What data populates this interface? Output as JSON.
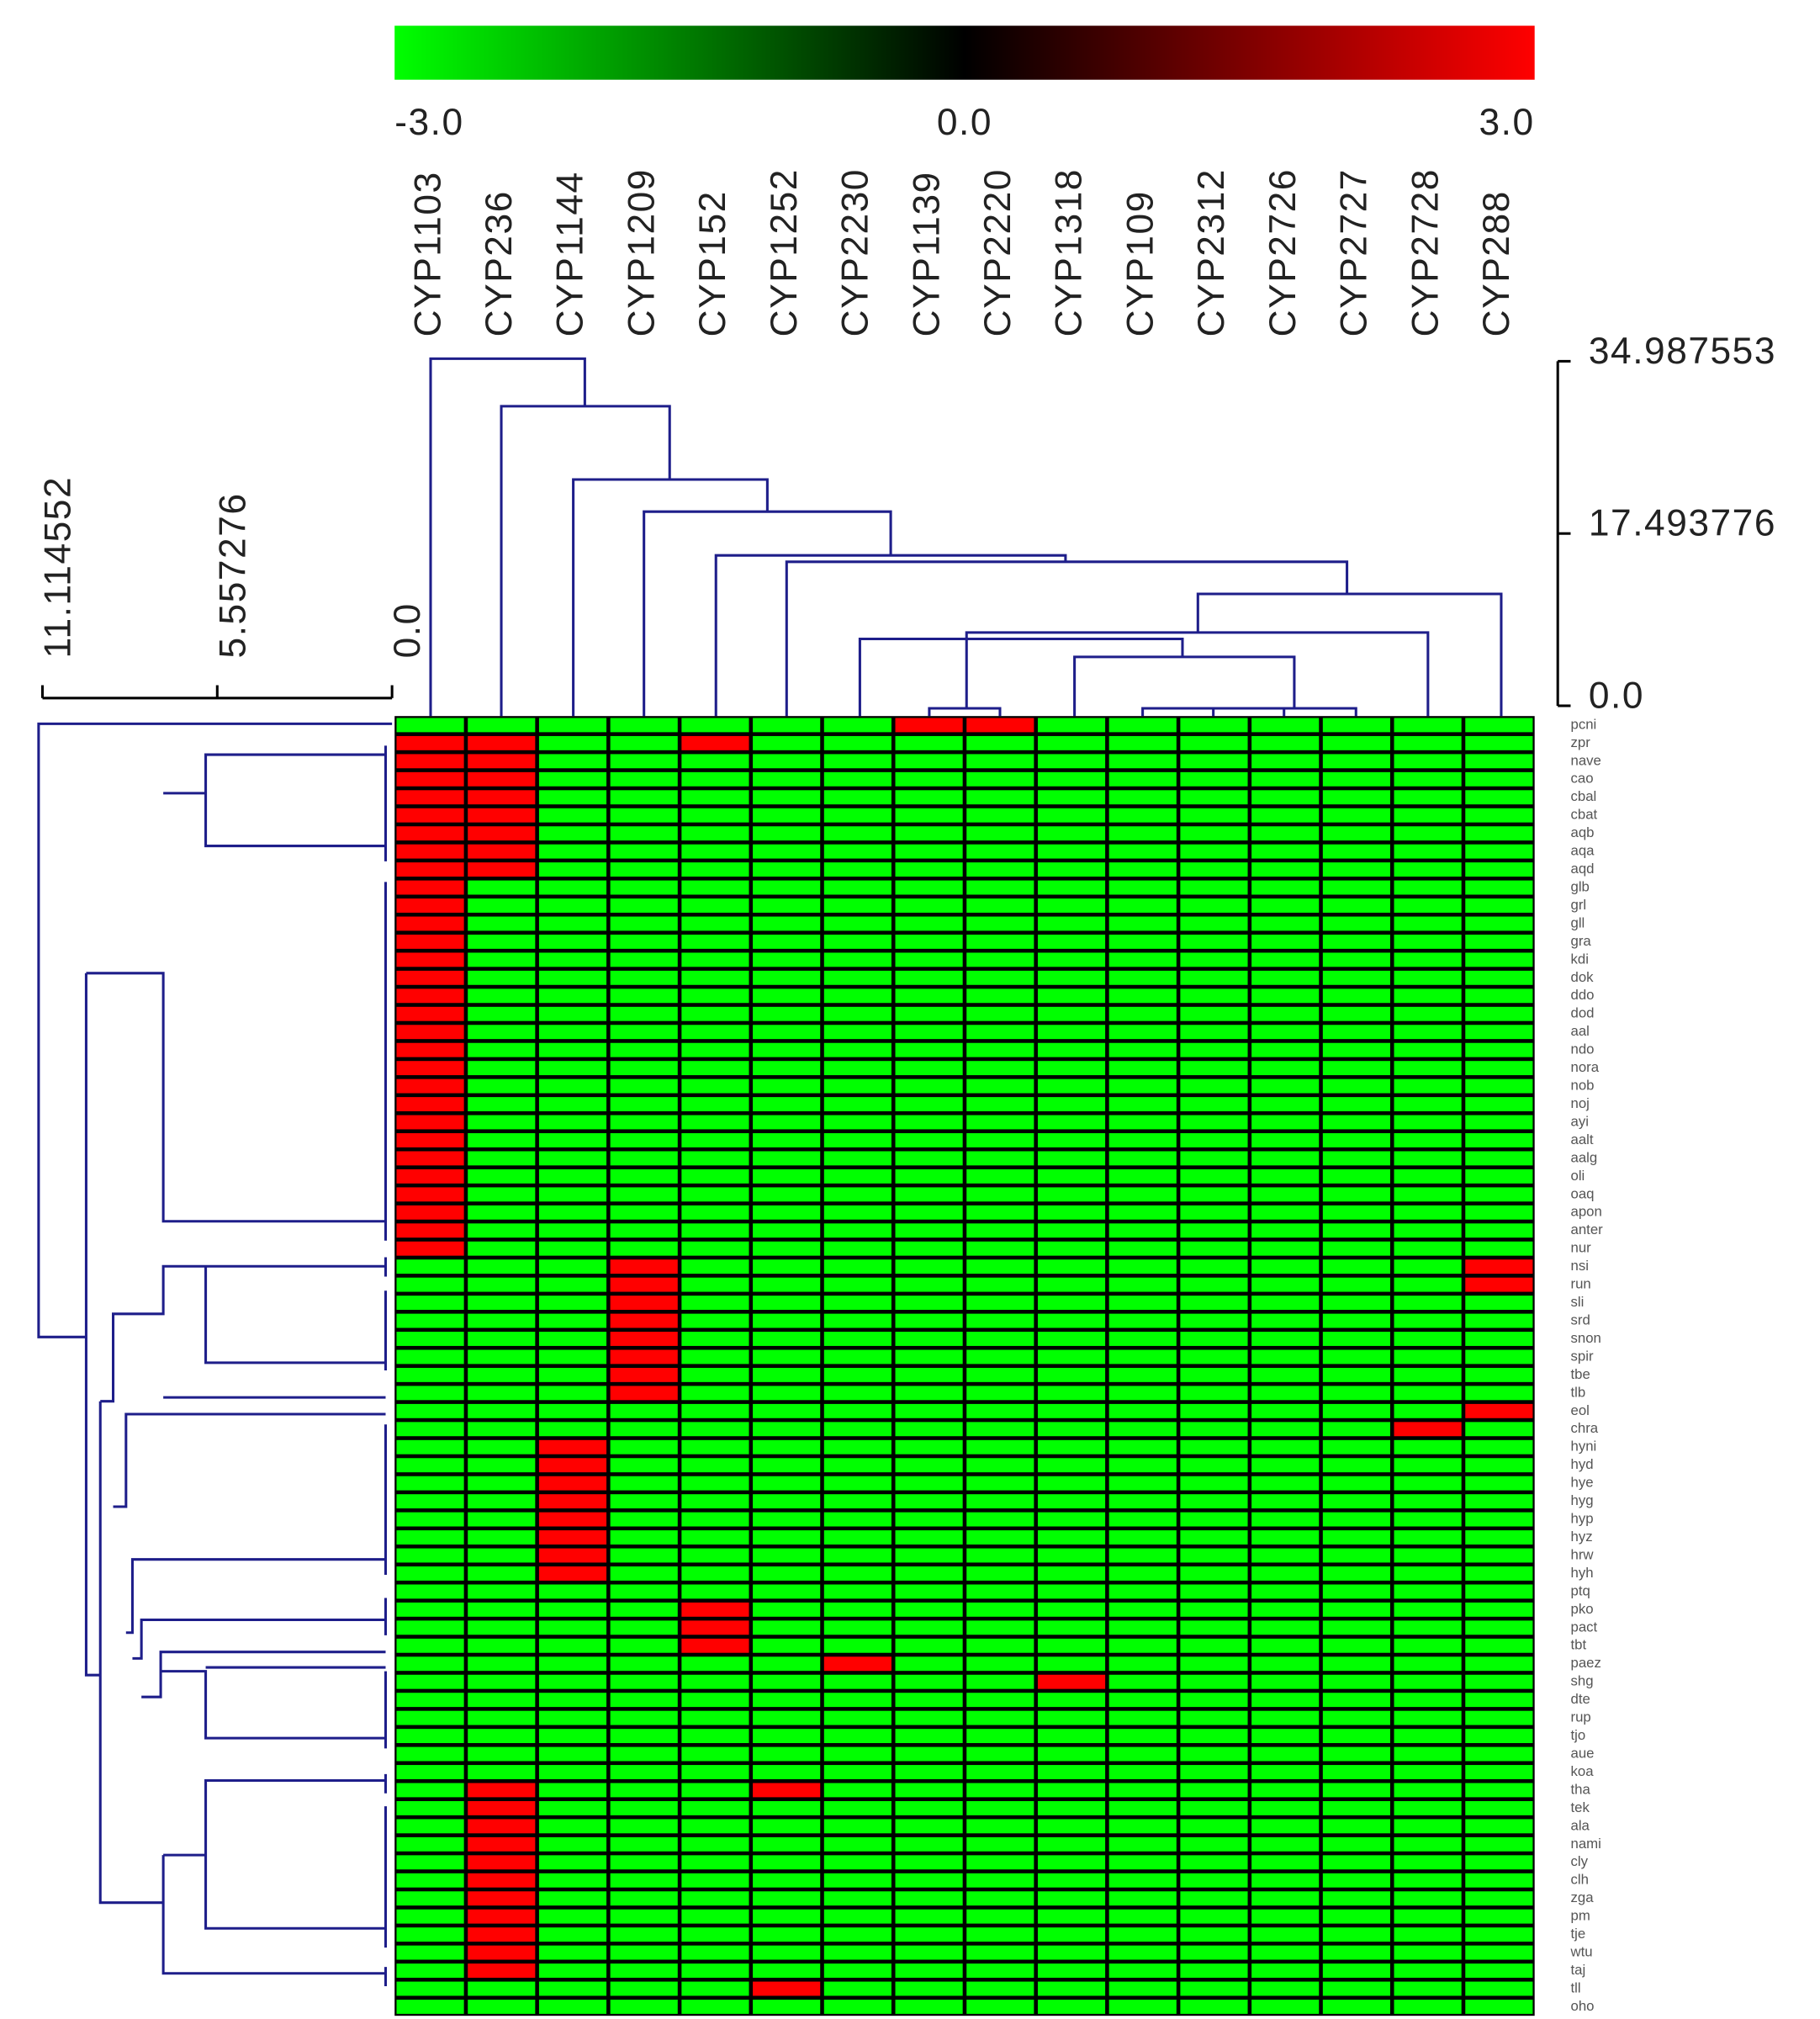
{
  "chart_data": {
    "type": "heatmap",
    "colormap": [
      "#00ff00",
      "#000000",
      "#ff0000"
    ],
    "colorbar": {
      "lim": [
        -3,
        3
      ],
      "ticks": [
        {
          "value": -3,
          "label": "-3.0"
        },
        {
          "value": 0,
          "label": "0.0"
        },
        {
          "value": 3,
          "label": "3.0"
        }
      ]
    },
    "column_dendrogram_axis": {
      "ylim": [
        0,
        34.987553
      ],
      "yticks": [
        34.987553,
        17.493776,
        {
          "value": 0,
          "label": "0.0"
        }
      ]
    },
    "row_dendrogram_axis": {
      "xlim": [
        0,
        11.114552
      ],
      "xticks": [
        11.114552,
        5.557276,
        {
          "value": 0,
          "label": "0.0"
        }
      ]
    },
    "columns": [
      "CYP1103",
      "CYP236",
      "CYP1144",
      "CYP1209",
      "CYP152",
      "CYP1252",
      "CYP2230",
      "CYP1139",
      "CYP2220",
      "CYP1318",
      "CYP109",
      "CYP2312",
      "CYP2726",
      "CYP2727",
      "CYP2728",
      "CYP288"
    ],
    "rows": [
      "pcni",
      "zpr",
      "nave",
      "cao",
      "cbal",
      "cbat",
      "aqb",
      "aqa",
      "aqd",
      "glb",
      "grl",
      "gll",
      "gra",
      "kdi",
      "dok",
      "ddo",
      "dod",
      "aal",
      "ndo",
      "nora",
      "nob",
      "noj",
      "ayi",
      "aalt",
      "aalg",
      "oli",
      "oaq",
      "apon",
      "anter",
      "nur",
      "nsi",
      "run",
      "sli",
      "srd",
      "snon",
      "spir",
      "tbe",
      "tlb",
      "eol",
      "chra",
      "hyni",
      "hyd",
      "hye",
      "hyg",
      "hyp",
      "hyz",
      "hrw",
      "hyh",
      "ptq",
      "pko",
      "pact",
      "tbt",
      "paez",
      "shg",
      "dte",
      "rup",
      "tjo",
      "aue",
      "koa",
      "tha",
      "tek",
      "ala",
      "nami",
      "cly",
      "clh",
      "zga",
      "pm",
      "tje",
      "wtu",
      "taj",
      "tll",
      "oho"
    ],
    "values": [
      [
        -3,
        -3,
        -3,
        -3,
        -3,
        -3,
        -3,
        3,
        3,
        -3,
        -3,
        -3,
        -3,
        -3,
        -3,
        -3
      ],
      [
        3,
        3,
        -3,
        -3,
        3,
        -3,
        -3,
        -3,
        -3,
        -3,
        -3,
        -3,
        -3,
        -3,
        -3,
        -3
      ],
      [
        3,
        3,
        -3,
        -3,
        -3,
        -3,
        -3,
        -3,
        -3,
        -3,
        -3,
        -3,
        -3,
        -3,
        -3,
        -3
      ],
      [
        3,
        3,
        -3,
        -3,
        -3,
        -3,
        -3,
        -3,
        -3,
        -3,
        -3,
        -3,
        -3,
        -3,
        -3,
        -3
      ],
      [
        3,
        3,
        -3,
        -3,
        -3,
        -3,
        -3,
        -3,
        -3,
        -3,
        -3,
        -3,
        -3,
        -3,
        -3,
        -3
      ],
      [
        3,
        3,
        -3,
        -3,
        -3,
        -3,
        -3,
        -3,
        -3,
        -3,
        -3,
        -3,
        -3,
        -3,
        -3,
        -3
      ],
      [
        3,
        3,
        -3,
        -3,
        -3,
        -3,
        -3,
        -3,
        -3,
        -3,
        -3,
        -3,
        -3,
        -3,
        -3,
        -3
      ],
      [
        3,
        3,
        -3,
        -3,
        -3,
        -3,
        -3,
        -3,
        -3,
        -3,
        -3,
        -3,
        -3,
        -3,
        -3,
        -3
      ],
      [
        3,
        3,
        -3,
        -3,
        -3,
        -3,
        -3,
        -3,
        -3,
        -3,
        -3,
        -3,
        -3,
        -3,
        -3,
        -3
      ],
      [
        3,
        -3,
        -3,
        -3,
        -3,
        -3,
        -3,
        -3,
        -3,
        -3,
        -3,
        -3,
        -3,
        -3,
        -3,
        -3
      ],
      [
        3,
        -3,
        -3,
        -3,
        -3,
        -3,
        -3,
        -3,
        -3,
        -3,
        -3,
        -3,
        -3,
        -3,
        -3,
        -3
      ],
      [
        3,
        -3,
        -3,
        -3,
        -3,
        -3,
        -3,
        -3,
        -3,
        -3,
        -3,
        -3,
        -3,
        -3,
        -3,
        -3
      ],
      [
        3,
        -3,
        -3,
        -3,
        -3,
        -3,
        -3,
        -3,
        -3,
        -3,
        -3,
        -3,
        -3,
        -3,
        -3,
        -3
      ],
      [
        3,
        -3,
        -3,
        -3,
        -3,
        -3,
        -3,
        -3,
        -3,
        -3,
        -3,
        -3,
        -3,
        -3,
        -3,
        -3
      ],
      [
        3,
        -3,
        -3,
        -3,
        -3,
        -3,
        -3,
        -3,
        -3,
        -3,
        -3,
        -3,
        -3,
        -3,
        -3,
        -3
      ],
      [
        3,
        -3,
        -3,
        -3,
        -3,
        -3,
        -3,
        -3,
        -3,
        -3,
        -3,
        -3,
        -3,
        -3,
        -3,
        -3
      ],
      [
        3,
        -3,
        -3,
        -3,
        -3,
        -3,
        -3,
        -3,
        -3,
        -3,
        -3,
        -3,
        -3,
        -3,
        -3,
        -3
      ],
      [
        3,
        -3,
        -3,
        -3,
        -3,
        -3,
        -3,
        -3,
        -3,
        -3,
        -3,
        -3,
        -3,
        -3,
        -3,
        -3
      ],
      [
        3,
        -3,
        -3,
        -3,
        -3,
        -3,
        -3,
        -3,
        -3,
        -3,
        -3,
        -3,
        -3,
        -3,
        -3,
        -3
      ],
      [
        3,
        -3,
        -3,
        -3,
        -3,
        -3,
        -3,
        -3,
        -3,
        -3,
        -3,
        -3,
        -3,
        -3,
        -3,
        -3
      ],
      [
        3,
        -3,
        -3,
        -3,
        -3,
        -3,
        -3,
        -3,
        -3,
        -3,
        -3,
        -3,
        -3,
        -3,
        -3,
        -3
      ],
      [
        3,
        -3,
        -3,
        -3,
        -3,
        -3,
        -3,
        -3,
        -3,
        -3,
        -3,
        -3,
        -3,
        -3,
        -3,
        -3
      ],
      [
        3,
        -3,
        -3,
        -3,
        -3,
        -3,
        -3,
        -3,
        -3,
        -3,
        -3,
        -3,
        -3,
        -3,
        -3,
        -3
      ],
      [
        3,
        -3,
        -3,
        -3,
        -3,
        -3,
        -3,
        -3,
        -3,
        -3,
        -3,
        -3,
        -3,
        -3,
        -3,
        -3
      ],
      [
        3,
        -3,
        -3,
        -3,
        -3,
        -3,
        -3,
        -3,
        -3,
        -3,
        -3,
        -3,
        -3,
        -3,
        -3,
        -3
      ],
      [
        3,
        -3,
        -3,
        -3,
        -3,
        -3,
        -3,
        -3,
        -3,
        -3,
        -3,
        -3,
        -3,
        -3,
        -3,
        -3
      ],
      [
        3,
        -3,
        -3,
        -3,
        -3,
        -3,
        -3,
        -3,
        -3,
        -3,
        -3,
        -3,
        -3,
        -3,
        -3,
        -3
      ],
      [
        3,
        -3,
        -3,
        -3,
        -3,
        -3,
        -3,
        -3,
        -3,
        -3,
        -3,
        -3,
        -3,
        -3,
        -3,
        -3
      ],
      [
        3,
        -3,
        -3,
        -3,
        -3,
        -3,
        -3,
        -3,
        -3,
        -3,
        -3,
        -3,
        -3,
        -3,
        -3,
        -3
      ],
      [
        3,
        -3,
        -3,
        -3,
        -3,
        -3,
        -3,
        -3,
        -3,
        -3,
        -3,
        -3,
        -3,
        -3,
        -3,
        -3
      ],
      [
        -3,
        -3,
        -3,
        3,
        -3,
        -3,
        -3,
        -3,
        -3,
        -3,
        -3,
        -3,
        -3,
        -3,
        -3,
        3
      ],
      [
        -3,
        -3,
        -3,
        3,
        -3,
        -3,
        -3,
        -3,
        -3,
        -3,
        -3,
        -3,
        -3,
        -3,
        -3,
        3
      ],
      [
        -3,
        -3,
        -3,
        3,
        -3,
        -3,
        -3,
        -3,
        -3,
        -3,
        -3,
        -3,
        -3,
        -3,
        -3,
        -3
      ],
      [
        -3,
        -3,
        -3,
        3,
        -3,
        -3,
        -3,
        -3,
        -3,
        -3,
        -3,
        -3,
        -3,
        -3,
        -3,
        -3
      ],
      [
        -3,
        -3,
        -3,
        3,
        -3,
        -3,
        -3,
        -3,
        -3,
        -3,
        -3,
        -3,
        -3,
        -3,
        -3,
        -3
      ],
      [
        -3,
        -3,
        -3,
        3,
        -3,
        -3,
        -3,
        -3,
        -3,
        -3,
        -3,
        -3,
        -3,
        -3,
        -3,
        -3
      ],
      [
        -3,
        -3,
        -3,
        3,
        -3,
        -3,
        -3,
        -3,
        -3,
        -3,
        -3,
        -3,
        -3,
        -3,
        -3,
        -3
      ],
      [
        -3,
        -3,
        -3,
        3,
        -3,
        -3,
        -3,
        -3,
        -3,
        -3,
        -3,
        -3,
        -3,
        -3,
        -3,
        -3
      ],
      [
        -3,
        -3,
        -3,
        -3,
        -3,
        -3,
        -3,
        -3,
        -3,
        -3,
        -3,
        -3,
        -3,
        -3,
        -3,
        3
      ],
      [
        -3,
        -3,
        -3,
        -3,
        -3,
        -3,
        -3,
        -3,
        -3,
        -3,
        -3,
        -3,
        -3,
        -3,
        3,
        -3
      ],
      [
        -3,
        -3,
        3,
        -3,
        -3,
        -3,
        -3,
        -3,
        -3,
        -3,
        -3,
        -3,
        -3,
        -3,
        -3,
        -3
      ],
      [
        -3,
        -3,
        3,
        -3,
        -3,
        -3,
        -3,
        -3,
        -3,
        -3,
        -3,
        -3,
        -3,
        -3,
        -3,
        -3
      ],
      [
        -3,
        -3,
        3,
        -3,
        -3,
        -3,
        -3,
        -3,
        -3,
        -3,
        -3,
        -3,
        -3,
        -3,
        -3,
        -3
      ],
      [
        -3,
        -3,
        3,
        -3,
        -3,
        -3,
        -3,
        -3,
        -3,
        -3,
        -3,
        -3,
        -3,
        -3,
        -3,
        -3
      ],
      [
        -3,
        -3,
        3,
        -3,
        -3,
        -3,
        -3,
        -3,
        -3,
        -3,
        -3,
        -3,
        -3,
        -3,
        -3,
        -3
      ],
      [
        -3,
        -3,
        3,
        -3,
        -3,
        -3,
        -3,
        -3,
        -3,
        -3,
        -3,
        -3,
        -3,
        -3,
        -3,
        -3
      ],
      [
        -3,
        -3,
        3,
        -3,
        -3,
        -3,
        -3,
        -3,
        -3,
        -3,
        -3,
        -3,
        -3,
        -3,
        -3,
        -3
      ],
      [
        -3,
        -3,
        3,
        -3,
        -3,
        -3,
        -3,
        -3,
        -3,
        -3,
        -3,
        -3,
        -3,
        -3,
        -3,
        -3
      ],
      [
        -3,
        -3,
        -3,
        -3,
        -3,
        -3,
        -3,
        -3,
        -3,
        -3,
        -3,
        -3,
        -3,
        -3,
        -3,
        -3
      ],
      [
        -3,
        -3,
        -3,
        -3,
        3,
        -3,
        -3,
        -3,
        -3,
        -3,
        -3,
        -3,
        -3,
        -3,
        -3,
        -3
      ],
      [
        -3,
        -3,
        -3,
        -3,
        3,
        -3,
        -3,
        -3,
        -3,
        -3,
        -3,
        -3,
        -3,
        -3,
        -3,
        -3
      ],
      [
        -3,
        -3,
        -3,
        -3,
        3,
        -3,
        -3,
        -3,
        -3,
        -3,
        -3,
        -3,
        -3,
        -3,
        -3,
        -3
      ],
      [
        -3,
        -3,
        -3,
        -3,
        -3,
        -3,
        3,
        -3,
        -3,
        -3,
        -3,
        -3,
        -3,
        -3,
        -3,
        -3
      ],
      [
        -3,
        -3,
        -3,
        -3,
        -3,
        -3,
        -3,
        -3,
        -3,
        3,
        -3,
        -3,
        -3,
        -3,
        -3,
        -3
      ],
      [
        -3,
        -3,
        -3,
        -3,
        -3,
        -3,
        -3,
        -3,
        -3,
        -3,
        -3,
        -3,
        -3,
        -3,
        -3,
        -3
      ],
      [
        -3,
        -3,
        -3,
        -3,
        -3,
        -3,
        -3,
        -3,
        -3,
        -3,
        -3,
        -3,
        -3,
        -3,
        -3,
        -3
      ],
      [
        -3,
        -3,
        -3,
        -3,
        -3,
        -3,
        -3,
        -3,
        -3,
        -3,
        -3,
        -3,
        -3,
        -3,
        -3,
        -3
      ],
      [
        -3,
        -3,
        -3,
        -3,
        -3,
        -3,
        -3,
        -3,
        -3,
        -3,
        -3,
        -3,
        -3,
        -3,
        -3,
        -3
      ],
      [
        -3,
        -3,
        -3,
        -3,
        -3,
        -3,
        -3,
        -3,
        -3,
        -3,
        -3,
        -3,
        -3,
        -3,
        -3,
        -3
      ],
      [
        -3,
        3,
        -3,
        -3,
        -3,
        3,
        -3,
        -3,
        -3,
        -3,
        -3,
        -3,
        -3,
        -3,
        -3,
        -3
      ],
      [
        -3,
        3,
        -3,
        -3,
        -3,
        -3,
        -3,
        -3,
        -3,
        -3,
        -3,
        -3,
        -3,
        -3,
        -3,
        -3
      ],
      [
        -3,
        3,
        -3,
        -3,
        -3,
        -3,
        -3,
        -3,
        -3,
        -3,
        -3,
        -3,
        -3,
        -3,
        -3,
        -3
      ],
      [
        -3,
        3,
        -3,
        -3,
        -3,
        -3,
        -3,
        -3,
        -3,
        -3,
        -3,
        -3,
        -3,
        -3,
        -3,
        -3
      ],
      [
        -3,
        3,
        -3,
        -3,
        -3,
        -3,
        -3,
        -3,
        -3,
        -3,
        -3,
        -3,
        -3,
        -3,
        -3,
        -3
      ],
      [
        -3,
        3,
        -3,
        -3,
        -3,
        -3,
        -3,
        -3,
        -3,
        -3,
        -3,
        -3,
        -3,
        -3,
        -3,
        -3
      ],
      [
        -3,
        3,
        -3,
        -3,
        -3,
        -3,
        -3,
        -3,
        -3,
        -3,
        -3,
        -3,
        -3,
        -3,
        -3,
        -3
      ],
      [
        -3,
        3,
        -3,
        -3,
        -3,
        -3,
        -3,
        -3,
        -3,
        -3,
        -3,
        -3,
        -3,
        -3,
        -3,
        -3
      ],
      [
        -3,
        3,
        -3,
        -3,
        -3,
        -3,
        -3,
        -3,
        -3,
        -3,
        -3,
        -3,
        -3,
        -3,
        -3,
        -3
      ],
      [
        -3,
        3,
        -3,
        -3,
        -3,
        -3,
        -3,
        -3,
        -3,
        -3,
        -3,
        -3,
        -3,
        -3,
        -3,
        -3
      ],
      [
        -3,
        3,
        -3,
        -3,
        -3,
        -3,
        -3,
        -3,
        -3,
        -3,
        -3,
        -3,
        -3,
        -3,
        -3,
        -3
      ],
      [
        -3,
        -3,
        -3,
        -3,
        -3,
        3,
        -3,
        -3,
        -3,
        -3,
        -3,
        -3,
        -3,
        -3,
        -3,
        -3
      ],
      [
        -3,
        -3,
        -3,
        -3,
        -3,
        -3,
        -3,
        -3,
        -3,
        -3,
        -3,
        -3,
        -3,
        -3,
        -3,
        -3
      ]
    ]
  }
}
